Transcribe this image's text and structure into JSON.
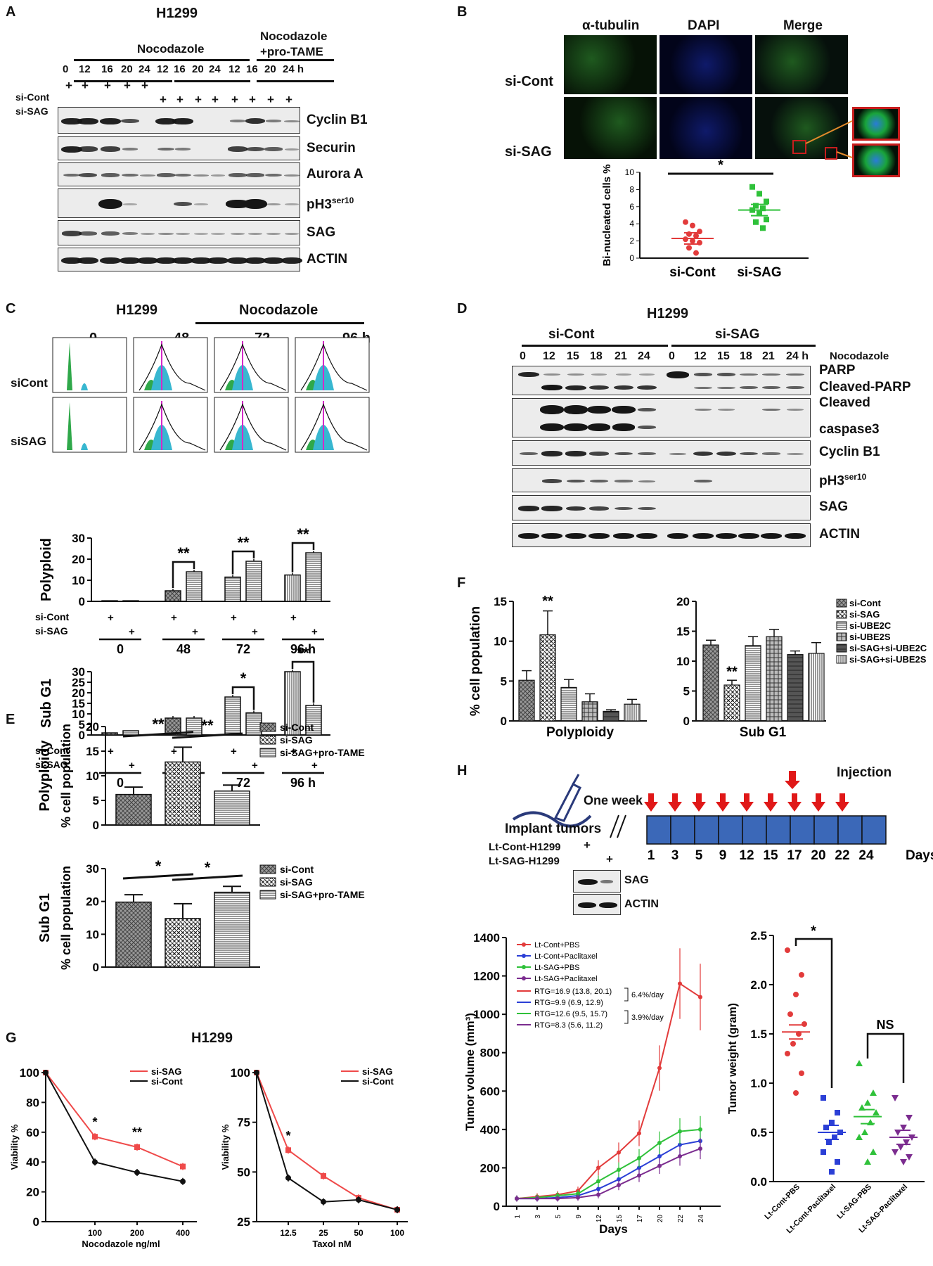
{
  "panels": {
    "A": "A",
    "B": "B",
    "C": "C",
    "D": "D",
    "E": "E",
    "F": "F",
    "G": "G",
    "H": "H"
  },
  "panelA": {
    "cell_line": "H1299",
    "treatment1": "Nocodazole",
    "treatment2_line1": "Nocodazole",
    "treatment2_line2": "+pro-TAME",
    "timepoints": [
      "0",
      "12",
      "16",
      "20",
      "24",
      "12",
      "16",
      "20",
      "24",
      "12",
      "16",
      "20",
      "24 h"
    ],
    "row_labels": [
      "si-Cont",
      "si-SAG"
    ],
    "proteins": [
      "Cyclin B1",
      "Securin",
      "Aurora A",
      "pH3",
      "SAG",
      "ACTIN"
    ],
    "ph3_superscript": "ser10"
  },
  "panelB": {
    "columns": [
      "α-tubulin",
      "DAPI",
      "Merge"
    ],
    "rows": [
      "si-Cont",
      "si-SAG"
    ],
    "ylabel": "Bi-nucleated cells %",
    "yticks": [
      "0",
      "2",
      "4",
      "6",
      "8",
      "10"
    ],
    "xcats": [
      "si-Cont",
      "si-SAG"
    ],
    "sig": "*"
  },
  "panelC": {
    "cell_line": "H1299",
    "treatment": "Nocodazole",
    "times": [
      "0",
      "48",
      "72",
      "96 h"
    ],
    "rows": [
      "siCont",
      "siSAG"
    ],
    "polyploid_label": "Polyploid",
    "subg1_label": "Sub G1",
    "row_labels": [
      "si-Cont",
      "si-SAG"
    ],
    "group_labels": [
      "0",
      "48",
      "72",
      "96 h"
    ],
    "poly_yticks": [
      "0",
      "10",
      "20",
      "30"
    ],
    "subg1_yticks": [
      "0",
      "5",
      "10",
      "15",
      "20",
      "25",
      "30"
    ],
    "sig": [
      "**",
      "**",
      "**",
      "*",
      "**"
    ]
  },
  "panelD": {
    "cell_line": "H1299",
    "groups": [
      "si-Cont",
      "si-SAG"
    ],
    "timepoints": [
      "0",
      "12",
      "15",
      "18",
      "21",
      "24",
      "0",
      "12",
      "15",
      "18",
      "21",
      "24 h"
    ],
    "treatment": "Nocodazole",
    "proteins": [
      "PARP",
      "Cleaved-PARP",
      "Cleaved",
      "caspase3",
      "Cyclin B1",
      "pH3",
      "SAG",
      "ACTIN"
    ],
    "ph3_superscript": "ser10"
  },
  "panelE": {
    "poly_label": "Polyploidy",
    "subg1_label": "Sub G1",
    "ylabel": "% cell population",
    "poly_yticks": [
      "0",
      "5",
      "10",
      "15",
      "20"
    ],
    "subg1_yticks": [
      "0",
      "10",
      "20",
      "30"
    ],
    "legend": [
      "si-Cont",
      "si-SAG",
      "si-SAG+pro-TAME"
    ],
    "sig_poly": [
      "**",
      "**"
    ],
    "sig_subg1": [
      "*",
      "*"
    ]
  },
  "panelF": {
    "ylabel": "% cell population",
    "poly_yticks": [
      "0",
      "5",
      "10",
      "15"
    ],
    "subg1_yticks": [
      "0",
      "5",
      "10",
      "15",
      "20"
    ],
    "xcats": [
      "Polyploidy",
      "Sub G1"
    ],
    "legend": [
      "si-Cont",
      "si-SAG",
      "si-UBE2C",
      "si-UBE2S",
      "si-SAG+si-UBE2C",
      "si-SAG+si-UBE2S"
    ],
    "sig": [
      "**",
      "**"
    ]
  },
  "panelG": {
    "cell_line": "H1299",
    "ylabel": "Viability %",
    "left_xlabel": "Nocodazole ng/ml",
    "right_xlabel": "Taxol nM",
    "legend": [
      "si-SAG",
      "si-Cont"
    ],
    "left_yticks": [
      "0",
      "20",
      "40",
      "60",
      "80",
      "100"
    ],
    "left_xticks": [
      "100",
      "200",
      "400"
    ],
    "right_yticks": [
      "25",
      "50",
      "75",
      "100"
    ],
    "right_xticks": [
      "12.5",
      "25",
      "50",
      "100"
    ],
    "sig": [
      "*",
      "**",
      "*"
    ]
  },
  "panelH": {
    "injection": "Injection",
    "one_week": "One week",
    "implant": "Implant tumors",
    "days": [
      "1",
      "3",
      "5",
      "9",
      "12",
      "15",
      "17",
      "20",
      "22",
      "24"
    ],
    "days_label": "Days",
    "lines": [
      "Lt-Cont-H1299",
      "Lt-SAG-H1299"
    ],
    "blot_proteins": [
      "SAG",
      "ACTIN"
    ],
    "volume_ylabel": "Tumor volume (mm³)",
    "volume_yticks": [
      "0",
      "200",
      "400",
      "600",
      "800",
      "1000",
      "1200",
      "1400"
    ],
    "volume_xticks": [
      "1",
      "3",
      "5",
      "9",
      "12",
      "15",
      "17",
      "20",
      "22",
      "24"
    ],
    "volume_xlabel": "Days",
    "volume_legend": [
      "Lt-Cont+PBS",
      "Lt-Cont+Paclitaxel",
      "Lt-SAG+PBS",
      "Lt-SAG+Paclitaxel"
    ],
    "rtg": [
      "RTG=16.9 (13.8, 20.1)",
      "RTG=9.9 (6.9, 12.9)",
      "RTG=12.6 (9.5, 15.7)",
      "RTG=8.3 (5.6, 11.2)"
    ],
    "rate1": "6.4%/day",
    "rate2": "3.9%/day",
    "weight_ylabel": "Tumor weight (gram)",
    "weight_yticks": [
      "0.0",
      "0.5",
      "1.0",
      "1.5",
      "2.0",
      "2.5"
    ],
    "weight_xcats": [
      "Lt-Cont-PBS",
      "Lt-Cont-Paclitaxel",
      "Lt-SAG-PBS",
      "Lt-SAG-Paclitaxel"
    ],
    "sig": [
      "*",
      "NS"
    ]
  },
  "colors": {
    "red": "#e23b3b",
    "blue": "#2b3fd6",
    "green": "#2fc13a",
    "purple": "#7b2c8f",
    "black": "#111111",
    "plot_blue": "#3a6bc9"
  },
  "chart_data": [
    {
      "type": "scatter",
      "title": "",
      "ylabel": "Bi-nucleated cells %",
      "ylim": [
        0,
        10
      ],
      "categories": [
        "si-Cont",
        "si-SAG"
      ],
      "series": [
        {
          "name": "si-Cont",
          "values": [
            4.2,
            3.8,
            3.1,
            2.8,
            2.6,
            2.2,
            2.0,
            1.8,
            1.2,
            0.6
          ]
        },
        {
          "name": "si-SAG",
          "values": [
            8.3,
            7.5,
            6.6,
            6.1,
            5.8,
            5.6,
            5.2,
            4.5,
            4.2,
            3.5
          ]
        }
      ],
      "means": [
        2.3,
        5.6
      ]
    },
    {
      "type": "bar",
      "ylabel": "Polyploid",
      "ylim": [
        0,
        30
      ],
      "categories": [
        "0",
        "48",
        "72",
        "96 h"
      ],
      "series": [
        {
          "name": "si-Cont",
          "values": [
            0.3,
            5,
            11.5,
            12.5
          ]
        },
        {
          "name": "si-SAG",
          "values": [
            0.3,
            14,
            19,
            23
          ]
        }
      ]
    },
    {
      "type": "bar",
      "ylabel": "Sub G1",
      "ylim": [
        0,
        30
      ],
      "categories": [
        "0",
        "48",
        "72",
        "96 h"
      ],
      "series": [
        {
          "name": "si-Cont",
          "values": [
            1,
            8,
            18,
            30
          ]
        },
        {
          "name": "si-SAG",
          "values": [
            2,
            8,
            10.5,
            14
          ]
        }
      ]
    },
    {
      "type": "bar",
      "ylabel": "% cell population",
      "ylim": [
        0,
        20
      ],
      "categories": [
        "Polyploidy"
      ],
      "series": [
        {
          "name": "si-Cont",
          "values": [
            6.2
          ]
        },
        {
          "name": "si-SAG",
          "values": [
            12.8
          ]
        },
        {
          "name": "si-SAG+pro-TAME",
          "values": [
            6.9
          ]
        }
      ]
    },
    {
      "type": "bar",
      "ylabel": "% cell population",
      "ylim": [
        0,
        30
      ],
      "categories": [
        "Sub G1"
      ],
      "series": [
        {
          "name": "si-Cont",
          "values": [
            19.8
          ]
        },
        {
          "name": "si-SAG",
          "values": [
            14.8
          ]
        },
        {
          "name": "si-SAG+pro-TAME",
          "values": [
            22.8
          ]
        }
      ]
    },
    {
      "type": "bar",
      "ylabel": "% cell population",
      "ylim": [
        0,
        15
      ],
      "categories": [
        "Polyploidy"
      ],
      "series": [
        {
          "name": "si-Cont",
          "values": [
            5.1
          ]
        },
        {
          "name": "si-SAG",
          "values": [
            10.8
          ]
        },
        {
          "name": "si-UBE2C",
          "values": [
            4.2
          ]
        },
        {
          "name": "si-UBE2S",
          "values": [
            2.4
          ]
        },
        {
          "name": "si-SAG+si-UBE2C",
          "values": [
            1.2
          ]
        },
        {
          "name": "si-SAG+si-UBE2S",
          "values": [
            2.1
          ]
        }
      ]
    },
    {
      "type": "bar",
      "ylim": [
        0,
        20
      ],
      "categories": [
        "Sub G1"
      ],
      "series": [
        {
          "name": "si-Cont",
          "values": [
            12.7
          ]
        },
        {
          "name": "si-SAG",
          "values": [
            6
          ]
        },
        {
          "name": "si-UBE2C",
          "values": [
            12.6
          ]
        },
        {
          "name": "si-UBE2S",
          "values": [
            14.1
          ]
        },
        {
          "name": "si-SAG+si-UBE2C",
          "values": [
            11.1
          ]
        },
        {
          "name": "si-SAG+si-UBE2S",
          "values": [
            11.3
          ]
        }
      ]
    },
    {
      "type": "line",
      "xlabel": "Nocodazole ng/ml",
      "ylabel": "Viability %",
      "ylim": [
        0,
        100
      ],
      "x": [
        0,
        100,
        200,
        400
      ],
      "series": [
        {
          "name": "si-SAG",
          "values": [
            100,
            57,
            50,
            37
          ]
        },
        {
          "name": "si-Cont",
          "values": [
            100,
            40,
            33,
            27
          ]
        }
      ]
    },
    {
      "type": "line",
      "xlabel": "Taxol nM",
      "ylabel": "Viability %",
      "ylim": [
        25,
        100
      ],
      "x": [
        "0",
        "12.5",
        "25",
        "50",
        "100"
      ],
      "series": [
        {
          "name": "si-SAG",
          "values": [
            100,
            61,
            48,
            37,
            31
          ]
        },
        {
          "name": "si-Cont",
          "values": [
            100,
            47,
            35,
            36,
            31
          ]
        }
      ]
    },
    {
      "type": "line",
      "xlabel": "Days",
      "ylabel": "Tumor volume (mm³)",
      "ylim": [
        0,
        1400
      ],
      "x": [
        1,
        3,
        5,
        9,
        12,
        15,
        17,
        20,
        22,
        24
      ],
      "series": [
        {
          "name": "Lt-Cont+PBS",
          "values": [
            40,
            50,
            60,
            80,
            200,
            280,
            380,
            720,
            1160,
            1090
          ]
        },
        {
          "name": "Lt-Cont+Paclitaxel",
          "values": [
            40,
            40,
            45,
            55,
            90,
            140,
            200,
            260,
            320,
            340
          ]
        },
        {
          "name": "Lt-SAG+PBS",
          "values": [
            40,
            45,
            55,
            65,
            130,
            190,
            250,
            330,
            390,
            400
          ]
        },
        {
          "name": "Lt-SAG+Paclitaxel",
          "values": [
            40,
            40,
            40,
            45,
            60,
            110,
            160,
            210,
            260,
            300
          ]
        }
      ]
    },
    {
      "type": "scatter",
      "ylabel": "Tumor weight (gram)",
      "ylim": [
        0,
        2.5
      ],
      "categories": [
        "Lt-Cont-PBS",
        "Lt-Cont-Paclitaxel",
        "Lt-SAG-PBS",
        "Lt-SAG-Paclitaxel"
      ],
      "means": [
        1.52,
        0.5,
        0.66,
        0.45
      ]
    }
  ]
}
